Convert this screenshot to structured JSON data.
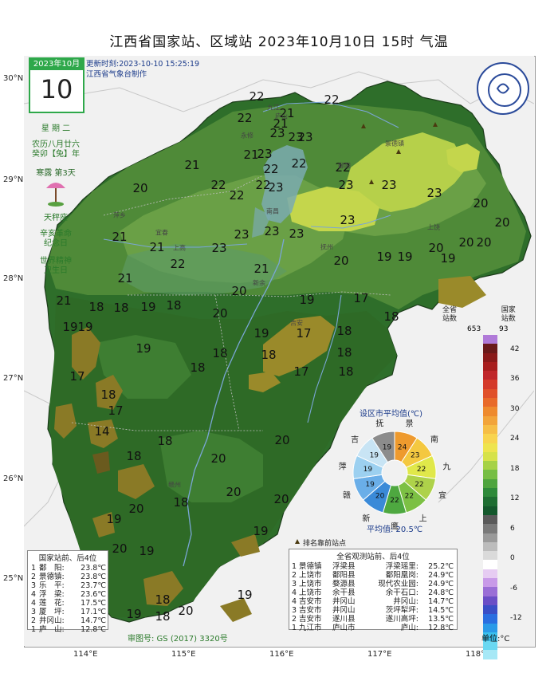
{
  "title": "江西省国家站、区域站    2023年10月10日  15时    气温",
  "date_box": {
    "month": "2023年10月",
    "day": "10"
  },
  "side_info": {
    "weekday": "星 期 二",
    "lunar": "农历八月廿六",
    "ganzhi": "癸卯【兔】年",
    "solar_term": "寒露  第3天",
    "zodiac": "天秤座",
    "memorial1": "辛亥革命\n纪念日",
    "memorial2": "世界精神\n卫生日"
  },
  "update": {
    "time": "更新时刻:2023-10-10 15:25:19",
    "maker": "江西省气象台制作"
  },
  "logo_text": "JIANGXI METEOROLOGY",
  "lat_labels": [
    "30°N",
    "29°N",
    "28°N",
    "27°N",
    "26°N",
    "25°N"
  ],
  "lon_labels": [
    "114°E",
    "115°E",
    "116°E",
    "117°E",
    "118°E"
  ],
  "station_values": [
    {
      "v": "22"
    },
    {
      "v": "22"
    },
    {
      "v": "21"
    },
    {
      "v": "22"
    },
    {
      "v": "21"
    },
    {
      "v": "23"
    },
    {
      "v": "23"
    },
    {
      "v": "23"
    },
    {
      "v": "21"
    },
    {
      "v": "23"
    },
    {
      "v": "22"
    },
    {
      "v": "22"
    },
    {
      "v": "22"
    },
    {
      "v": "22"
    },
    {
      "v": "23"
    },
    {
      "v": "23"
    },
    {
      "v": "21"
    },
    {
      "v": "20"
    },
    {
      "v": "22"
    },
    {
      "v": "22"
    },
    {
      "v": "23"
    },
    {
      "v": "23"
    },
    {
      "v": "20"
    },
    {
      "v": "20"
    },
    {
      "v": "21"
    },
    {
      "v": "23"
    },
    {
      "v": "23"
    },
    {
      "v": "23"
    },
    {
      "v": "23"
    },
    {
      "v": "20"
    },
    {
      "v": "21"
    },
    {
      "v": "22"
    },
    {
      "v": "23"
    },
    {
      "v": "21"
    },
    {
      "v": "20"
    },
    {
      "v": "19"
    },
    {
      "v": "19"
    },
    {
      "v": "20"
    },
    {
      "v": "19"
    },
    {
      "v": "20"
    },
    {
      "v": "21"
    },
    {
      "v": "20"
    },
    {
      "v": "19"
    },
    {
      "v": "17"
    },
    {
      "v": "21"
    },
    {
      "v": "18"
    },
    {
      "v": "18"
    },
    {
      "v": "18"
    },
    {
      "v": "19"
    },
    {
      "v": "18"
    },
    {
      "v": "19"
    },
    {
      "v": "19"
    },
    {
      "v": "20"
    },
    {
      "v": "19"
    },
    {
      "v": "17"
    },
    {
      "v": "18"
    },
    {
      "v": "18"
    },
    {
      "v": "18"
    },
    {
      "v": "19"
    },
    {
      "v": "18"
    },
    {
      "v": "18"
    },
    {
      "v": "17"
    },
    {
      "v": "17"
    },
    {
      "v": "18"
    },
    {
      "v": "17"
    },
    {
      "v": "18"
    },
    {
      "v": "14"
    },
    {
      "v": "18"
    },
    {
      "v": "18"
    },
    {
      "v": "20"
    },
    {
      "v": "20"
    },
    {
      "v": "18"
    },
    {
      "v": "20"
    },
    {
      "v": "20"
    },
    {
      "v": "19"
    },
    {
      "v": "20"
    },
    {
      "v": "19"
    },
    {
      "v": "19"
    },
    {
      "v": "20"
    },
    {
      "v": "19"
    },
    {
      "v": "18"
    },
    {
      "v": "20"
    },
    {
      "v": "19"
    },
    {
      "v": "18"
    }
  ],
  "cities": [
    "九江",
    "景德镇",
    "鄱阳",
    "南昌",
    "宜春",
    "上高",
    "吉安",
    "新余",
    "抚州",
    "上饶",
    "赣州",
    "萍乡",
    "庐山",
    "永修"
  ],
  "legend": {
    "col1": "全省\n站数",
    "col1_total": "653",
    "col2": "国家\n站数",
    "col2_total": "93",
    "ticks": [
      "42",
      "36",
      "30",
      "24",
      "18",
      "12",
      "6",
      "0",
      "-6",
      "-12"
    ],
    "unit": "单位:°C",
    "colors": [
      "#b07ad8",
      "#6a1a1a",
      "#8a1a1a",
      "#a81e1e",
      "#c0262a",
      "#d43a2a",
      "#e0502a",
      "#e86a2a",
      "#ee8a2e",
      "#f2a43a",
      "#f6be46",
      "#f8d44e",
      "#eee44e",
      "#d6e24a",
      "#a6d246",
      "#76be44",
      "#4ea43e",
      "#2e8a3a",
      "#1e6e32",
      "#14582c",
      "#5a5a5a",
      "#7a7a7a",
      "#9a9a9a",
      "#bcbcbc",
      "#dadada",
      "#ffffff",
      "#e6ccf2",
      "#c89ae8",
      "#9a6ed6",
      "#6a4ec6",
      "#3a4ec6",
      "#2a6ee0",
      "#2a9ae8",
      "#3ac0ee",
      "#6ad8f2",
      "#a6e8f6"
    ]
  },
  "pie": {
    "title": "设区市平均值(℃)",
    "avg": "平均值: 20.5℃",
    "slices": [
      {
        "city": "景",
        "value": "24",
        "color": "#ee9a2e"
      },
      {
        "city": "南",
        "value": "23",
        "color": "#f4c840"
      },
      {
        "city": "九",
        "value": "22",
        "color": "#e0e84a"
      },
      {
        "city": "宜",
        "value": "22",
        "color": "#aed24a"
      },
      {
        "city": "上",
        "value": "22",
        "color": "#7cc044"
      },
      {
        "city": "鹰",
        "value": "22",
        "color": "#4ea840"
      },
      {
        "city": "新",
        "value": "20",
        "color": "#3a8ad8"
      },
      {
        "city": "赣",
        "value": "19",
        "color": "#6aaee8"
      },
      {
        "city": "萍",
        "value": "19",
        "color": "#9cd0f0"
      },
      {
        "city": "吉",
        "value": "19",
        "color": "#c8e4f4"
      },
      {
        "city": "抚",
        "value": "19",
        "color": "#8c8c8c"
      }
    ]
  },
  "rank_note": "排名靠前站点",
  "national_table": {
    "header": "国家站前、后4位",
    "rows": [
      {
        "rank": "1",
        "name": "鄱　阳:",
        "value": "23.8℃"
      },
      {
        "rank": "2",
        "name": "景德镇:",
        "value": "23.8℃"
      },
      {
        "rank": "3",
        "name": "乐　平:",
        "value": "23.7℃"
      },
      {
        "rank": "4",
        "name": "浮　梁:",
        "value": "23.6℃"
      },
      {
        "rank": "4",
        "name": "莲　花:",
        "value": "17.5℃"
      },
      {
        "rank": "3",
        "name": "厦　坪:",
        "value": "17.1℃"
      },
      {
        "rank": "2",
        "name": "井冈山:",
        "value": "14.7℃"
      },
      {
        "rank": "1",
        "name": "庐　山:",
        "value": "12.8℃"
      }
    ]
  },
  "all_table": {
    "header": "全省观测站前、后4位",
    "rows": [
      {
        "rank": "1",
        "city": "景德镇",
        "county": "浮梁县",
        "station": "浮梁瑶里:",
        "value": "25.2℃"
      },
      {
        "rank": "2",
        "city": "上饶市",
        "county": "鄱阳县",
        "station": "鄱阳凰岗:",
        "value": "24.9℃"
      },
      {
        "rank": "3",
        "city": "上饶市",
        "county": "婺源县",
        "station": "现代农业园:",
        "value": "24.9℃"
      },
      {
        "rank": "4",
        "city": "上饶市",
        "county": "余干县",
        "station": "余干石口:",
        "value": "24.8℃"
      },
      {
        "rank": "4",
        "city": "吉安市",
        "county": "井冈山",
        "station": "井冈山:",
        "value": "14.7℃"
      },
      {
        "rank": "3",
        "city": "吉安市",
        "county": "井冈山",
        "station": "茨坪犁坪:",
        "value": "14.5℃"
      },
      {
        "rank": "2",
        "city": "吉安市",
        "county": "遂川县",
        "station": "遂川高坪:",
        "value": "13.5℃"
      },
      {
        "rank": "1",
        "city": "九江市",
        "county": "庐山市",
        "station": "庐山:",
        "value": "12.8℃"
      }
    ]
  },
  "review_no": "审图号: GS (2017) 3320号"
}
